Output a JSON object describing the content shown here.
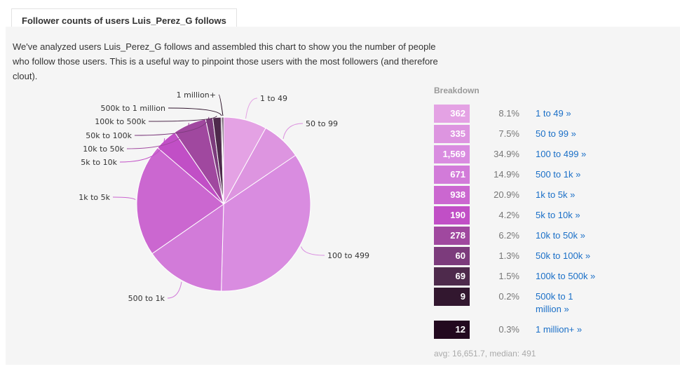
{
  "header": {
    "tab_title": "Follower counts of users Luis_Perez_G follows"
  },
  "description": "We've analyzed users Luis_Perez_G follows and assembled this chart to show you the number of people who follow those users. This is a useful way to pinpoint those users with the most followers (and therefore clout).",
  "breakdown": {
    "title": "Breakdown",
    "stats": "avg: 16,651.7, median: 491"
  },
  "chart_data": {
    "type": "pie",
    "categories": [
      "1 to 49",
      "50 to 99",
      "100 to 499",
      "500 to 1k",
      "1k to 5k",
      "5k to 10k",
      "10k to 50k",
      "50k to 100k",
      "100k to 500k",
      "500k to 1 million",
      "1 million+"
    ],
    "values": [
      362,
      335,
      1569,
      671,
      938,
      190,
      278,
      60,
      69,
      9,
      12
    ],
    "counts_display": [
      "362",
      "335",
      "1,569",
      "671",
      "938",
      "190",
      "278",
      "60",
      "69",
      "9",
      "12"
    ],
    "percents": [
      "8.1%",
      "7.5%",
      "34.9%",
      "14.9%",
      "20.9%",
      "4.2%",
      "6.2%",
      "1.3%",
      "1.5%",
      "0.2%",
      "0.3%"
    ],
    "link_labels": [
      "1 to 49 »",
      "50 to 99 »",
      "100 to 499 »",
      "500 to 1k »",
      "1k to 5k »",
      "5k to 10k »",
      "10k to 50k »",
      "50k to 100k »",
      "100k to 500k »",
      "500k to 1\nmillion »",
      "1 million+ »"
    ],
    "colors": [
      "#e4a2e4",
      "#dd95e0",
      "#d98ce0",
      "#d27bd9",
      "#cb67d0",
      "#c14fc6",
      "#a0489f",
      "#7c3b7c",
      "#4e2a4c",
      "#32172f",
      "#22091f"
    ]
  }
}
